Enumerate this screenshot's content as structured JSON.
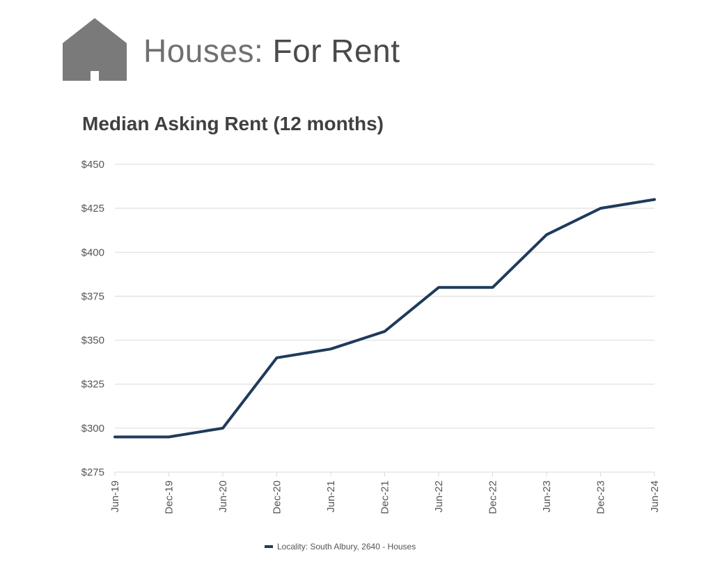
{
  "header": {
    "title_prefix": "Houses:",
    "title_main": "For Rent",
    "icon": "house-icon"
  },
  "colors": {
    "line": "#1f3a5c",
    "grid": "#d9d9d9",
    "icon": "#7a7a7a"
  },
  "chart_data": {
    "type": "line",
    "title": "Median Asking Rent (12 months)",
    "xlabel": "",
    "ylabel": "",
    "categories": [
      "Jun-19",
      "Dec-19",
      "Jun-20",
      "Dec-20",
      "Jun-21",
      "Dec-21",
      "Jun-22",
      "Dec-22",
      "Jun-23",
      "Dec-23",
      "Jun-24"
    ],
    "series": [
      {
        "name": "Locality: South Albury, 2640 - Houses",
        "values": [
          295,
          295,
          300,
          340,
          345,
          355,
          380,
          380,
          410,
          425,
          430
        ]
      }
    ],
    "ylim": [
      275,
      450
    ],
    "yticks": [
      275,
      300,
      325,
      350,
      375,
      400,
      425,
      450
    ],
    "ytick_labels": [
      "$275",
      "$300",
      "$325",
      "$350",
      "$375",
      "$400",
      "$425",
      "$450"
    ],
    "grid": true,
    "legend_position": "bottom"
  }
}
